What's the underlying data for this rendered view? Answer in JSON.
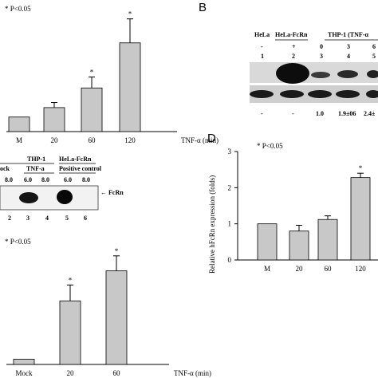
{
  "panels": {
    "A": {
      "significance": "* P<0.05",
      "chart_data": {
        "type": "bar",
        "categories": [
          "M",
          "20",
          "60",
          "120"
        ],
        "values": [
          1.0,
          1.65,
          3.0,
          6.1
        ],
        "errors": [
          0,
          0.35,
          0.75,
          1.65
        ],
        "significant": [
          false,
          false,
          true,
          true
        ],
        "ylim": [
          0,
          8.5
        ],
        "xlabel": "TNF-α (min)"
      }
    },
    "B": {
      "letter": "B",
      "headers": [
        "HeLa",
        "HeLa-FcRn",
        "THP-1 (TNF-α"
      ],
      "treatment_row": [
        "-",
        "+",
        "0",
        "3",
        "6"
      ],
      "lane_row": [
        "1",
        "2",
        "3",
        "4",
        "5"
      ],
      "quant_row": [
        "-",
        "-",
        "1.0",
        "1.9±06",
        "2.4±"
      ]
    },
    "C": {
      "group_left": "THP-1",
      "group_right": "HeLa-FcRn",
      "sub_mock": "ock",
      "sub_tnf": "TNF-a",
      "sub_positive": "Positive control",
      "ph_values": [
        "8.0",
        "6.0",
        "8.0",
        "6.0",
        "8.0"
      ],
      "lanes": [
        "2",
        "3",
        "4",
        "5",
        "6"
      ],
      "band_label": "← FcRn"
    },
    "D": {
      "letter": "D",
      "significance": "* P<0.05",
      "chart_data": {
        "type": "bar",
        "categories": [
          "M",
          "20",
          "60",
          "120"
        ],
        "values": [
          1.0,
          0.8,
          1.12,
          2.28
        ],
        "errors": [
          0,
          0.16,
          0.1,
          0.12
        ],
        "significant": [
          false,
          false,
          false,
          true
        ],
        "ylim": [
          0,
          3
        ],
        "yticks": [
          0,
          1,
          2,
          3
        ],
        "ylabel": "Relative hFcRn expression (folds)"
      }
    },
    "E": {
      "significance": "* P<0.05",
      "chart_data": {
        "type": "bar",
        "categories": [
          "Mock",
          "20",
          "60"
        ],
        "values": [
          0.3,
          3.6,
          5.3
        ],
        "errors": [
          0,
          0.9,
          0.85
        ],
        "significant": [
          false,
          true,
          true
        ],
        "ylim": [
          0,
          7
        ],
        "xlabel": "TNF-α (min)"
      }
    }
  }
}
